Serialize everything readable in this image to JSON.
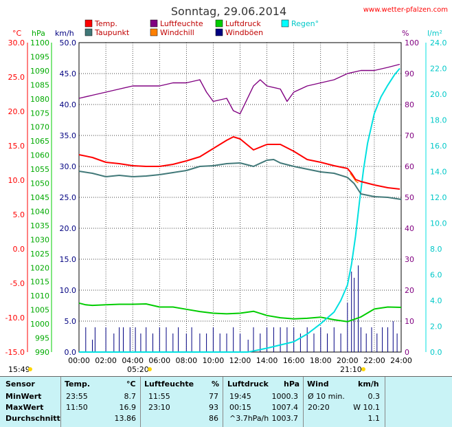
{
  "header": {
    "title": "Sonntag, 29.06.2014",
    "site": "www.wetter-pfalzen.com"
  },
  "legend": [
    {
      "label": "Temp.",
      "color": "#ff0000"
    },
    {
      "label": "Luftfeuchte",
      "color": "#800080"
    },
    {
      "label": "Luftdruck",
      "color": "#00cc00"
    },
    {
      "label": "Regen°",
      "color": "#00ffff"
    },
    {
      "label": "Taupunkt",
      "color": "#407878"
    },
    {
      "label": "Windchill",
      "color": "#ff8000"
    },
    {
      "label": "Windböen",
      "color": "#000080"
    }
  ],
  "axis_units": {
    "temp": "°C",
    "pressure": "hPa",
    "wind": "km/h",
    "humidity": "%",
    "rain": "l/m²"
  },
  "axes": {
    "temp_ticks": [
      "30.0",
      "25.0",
      "20.0",
      "15.0",
      "10.0",
      "5.0",
      "0.0",
      "-5.0",
      "-10.0",
      "-15.0"
    ],
    "pressure_ticks": [
      "1100",
      "1095",
      "1090",
      "1085",
      "1080",
      "1075",
      "1070",
      "1065",
      "1060",
      "1055",
      "1050",
      "1045",
      "1040",
      "1035",
      "1030",
      "1025",
      "1020",
      "1015",
      "1010",
      "1005",
      "1000",
      "995",
      "990"
    ],
    "wind_ticks": [
      "50.0",
      "45.0",
      "40.0",
      "35.0",
      "30.0",
      "25.0",
      "20.0",
      "15.0",
      "10.0",
      "5.0",
      "0.0"
    ],
    "humidity_ticks": [
      "100",
      "90",
      "80",
      "70",
      "60",
      "50",
      "40",
      "30",
      "20",
      "10",
      "0"
    ],
    "rain_ticks": [
      "24.0",
      "22.0",
      "20.0",
      "18.0",
      "16.0",
      "14.0",
      "12.0",
      "10.0",
      "8.0",
      "6.0",
      "4.0",
      "2.0",
      "0.0"
    ],
    "time_ticks": [
      "00:00",
      "02:00",
      "04:00",
      "06:00",
      "08:00",
      "10:00",
      "12:00",
      "14:00",
      "16:00",
      "18:00",
      "20:00",
      "22:00",
      "24:00"
    ]
  },
  "sun": {
    "sunrise_left": "15:49",
    "sunrise": "05:20",
    "sunset": "21:10"
  },
  "colors": {
    "plot_bg": "#ffffff",
    "grid": "#000000",
    "temp_axis": "#ff0000",
    "pressure_axis": "#00cc00",
    "humidity_axis": "#800080",
    "rain_axis": "#00e0e0"
  },
  "chart_data": {
    "type": "line",
    "title": "Sonntag, 29.06.2014",
    "x_unit": "hours",
    "xlim": [
      0,
      24
    ],
    "series": [
      {
        "name": "Temp.",
        "axis": "temp",
        "unit": "°C",
        "ylim": [
          -15,
          30
        ],
        "x": [
          0,
          1,
          2,
          3,
          4,
          5,
          6,
          7,
          8,
          9,
          10,
          11,
          11.5,
          12,
          13,
          14,
          15,
          16,
          17,
          18,
          19,
          20,
          20.3,
          20.6,
          21,
          22,
          23,
          23.9
        ],
        "values": [
          13.7,
          13.3,
          12.6,
          12.4,
          12.1,
          12.0,
          12.0,
          12.3,
          12.8,
          13.4,
          14.6,
          15.8,
          16.3,
          16.0,
          14.4,
          15.2,
          15.2,
          14.2,
          13.0,
          12.6,
          12.1,
          11.7,
          11.0,
          10.1,
          9.8,
          9.3,
          8.9,
          8.7
        ]
      },
      {
        "name": "Taupunkt",
        "axis": "temp",
        "unit": "°C",
        "ylim": [
          -15,
          30
        ],
        "x": [
          0,
          1,
          2,
          3,
          4,
          5,
          6,
          7,
          8,
          9,
          10,
          11,
          12,
          13,
          14,
          14.5,
          15,
          16,
          17,
          18,
          19,
          20,
          20.5,
          21,
          22,
          23,
          24
        ],
        "values": [
          11.3,
          11.0,
          10.5,
          10.7,
          10.5,
          10.6,
          10.8,
          11.1,
          11.4,
          12.0,
          12.1,
          12.4,
          12.5,
          12.0,
          12.9,
          13.0,
          12.5,
          12.0,
          11.6,
          11.2,
          11.0,
          10.4,
          9.5,
          8.0,
          7.6,
          7.5,
          7.2
        ]
      },
      {
        "name": "Luftfeuchte",
        "axis": "humidity",
        "unit": "%",
        "ylim": [
          0,
          100
        ],
        "x": [
          0,
          1,
          2,
          3,
          4,
          5,
          6,
          7,
          8,
          9,
          9.5,
          10,
          11,
          11.5,
          12,
          13,
          13.5,
          14,
          15,
          15.5,
          16,
          17,
          18,
          19,
          20,
          21,
          22,
          23,
          23.9
        ],
        "values": [
          82,
          83,
          84,
          85,
          86,
          86,
          86,
          87,
          87,
          88,
          84,
          81,
          82,
          78,
          77,
          86,
          88,
          86,
          85,
          81,
          84,
          86,
          87,
          88,
          90,
          91,
          91,
          92,
          93
        ]
      },
      {
        "name": "Luftdruck",
        "axis": "pressure",
        "unit": "hPa",
        "ylim": [
          990,
          1100
        ],
        "x": [
          0,
          0.5,
          1,
          2,
          3,
          4,
          5,
          6,
          7,
          8,
          9,
          10,
          11,
          12,
          13,
          14,
          15,
          16,
          17,
          18,
          19,
          20,
          21,
          22,
          23,
          24
        ],
        "values": [
          1007.4,
          1006.8,
          1006.6,
          1006.8,
          1007.0,
          1007.0,
          1007.1,
          1006.0,
          1006.0,
          1005.2,
          1004.4,
          1003.8,
          1003.6,
          1003.8,
          1004.5,
          1003.0,
          1002.2,
          1001.8,
          1002.0,
          1002.4,
          1001.5,
          1000.8,
          1002.5,
          1005.3,
          1006.0,
          1005.9
        ]
      },
      {
        "name": "Regen°",
        "axis": "rain",
        "unit": "l/m²",
        "ylim": [
          0,
          24
        ],
        "x": [
          0,
          12.6,
          14,
          16,
          17,
          18,
          19,
          19.5,
          20,
          20.3,
          20.6,
          20.9,
          21.2,
          21.5,
          22,
          22.5,
          23,
          23.5,
          23.9
        ],
        "values": [
          0,
          0,
          0.3,
          0.8,
          1.4,
          2.2,
          3.1,
          4.0,
          5.2,
          6.8,
          9.0,
          11.7,
          14.2,
          16.2,
          18.5,
          19.8,
          20.7,
          21.5,
          22.0
        ]
      },
      {
        "name": "Windchill",
        "axis": "temp",
        "unit": "°C",
        "ylim": [
          -15,
          30
        ],
        "x": [
          20.2,
          20.4,
          20.6,
          20.8
        ],
        "values": [
          11.0,
          10.5,
          9.9,
          9.6
        ]
      },
      {
        "name": "Windböen",
        "axis": "wind",
        "unit": "km/h",
        "ylim": [
          0,
          50
        ],
        "x": [
          0.5,
          1.0,
          1.2,
          2.0,
          2.6,
          3.0,
          3.3,
          3.8,
          4.2,
          4.6,
          5.0,
          5.5,
          6.0,
          6.5,
          7.0,
          7.4,
          8.0,
          8.4,
          9.0,
          9.5,
          10.0,
          10.5,
          11.0,
          11.5,
          12.0,
          12.6,
          13.0,
          13.5,
          14.0,
          14.5,
          15.0,
          15.5,
          16.0,
          16.5,
          17.0,
          17.5,
          18.0,
          18.5,
          19.0,
          19.5,
          20.0,
          20.3,
          20.5,
          20.8,
          21.0,
          21.4,
          21.8,
          22.2,
          22.6,
          23.0,
          23.4,
          23.7
        ],
        "values": [
          4,
          2,
          4,
          4,
          3,
          4,
          4,
          4,
          4,
          3,
          4,
          3,
          4,
          4,
          3,
          4,
          3,
          4,
          3,
          3,
          4,
          3,
          3,
          4,
          3,
          2,
          4,
          3,
          4,
          4,
          4,
          4,
          4,
          3,
          4,
          3,
          4,
          3,
          4,
          3,
          8,
          13,
          12,
          14,
          4,
          3,
          4,
          3,
          4,
          4,
          5,
          3
        ]
      }
    ]
  },
  "stats": {
    "headers": {
      "sensor": "Sensor",
      "temp": "Temp.",
      "temp_unit": "°C",
      "hum": "Luftfeuchte",
      "hum_unit": "%",
      "press": "Luftdruck",
      "press_unit": "hPa",
      "wind": "Wind",
      "wind_unit": "km/h"
    },
    "rows": [
      {
        "label": "MinWert",
        "t_time": "23:55",
        "t_val": "8.7",
        "h_time": "11:55",
        "h_val": "77",
        "p_time": "19:45",
        "p_val": "1000.3",
        "w_time": "Ø 10 min.",
        "w_val": "0.3"
      },
      {
        "label": "MaxWert",
        "t_time": "11:50",
        "t_val": "16.9",
        "h_time": "23:10",
        "h_val": "93",
        "p_time": "00:15",
        "p_val": "1007.4",
        "w_time": "20:20",
        "w_val": "W 10.1"
      },
      {
        "label": "Durchschnitt",
        "t_time": "",
        "t_val": "13.86",
        "h_time": "",
        "h_val": "86",
        "p_time": "^3.7hPa/h",
        "p_val": "1003.7",
        "w_time": "",
        "w_val": "1.1"
      }
    ]
  }
}
